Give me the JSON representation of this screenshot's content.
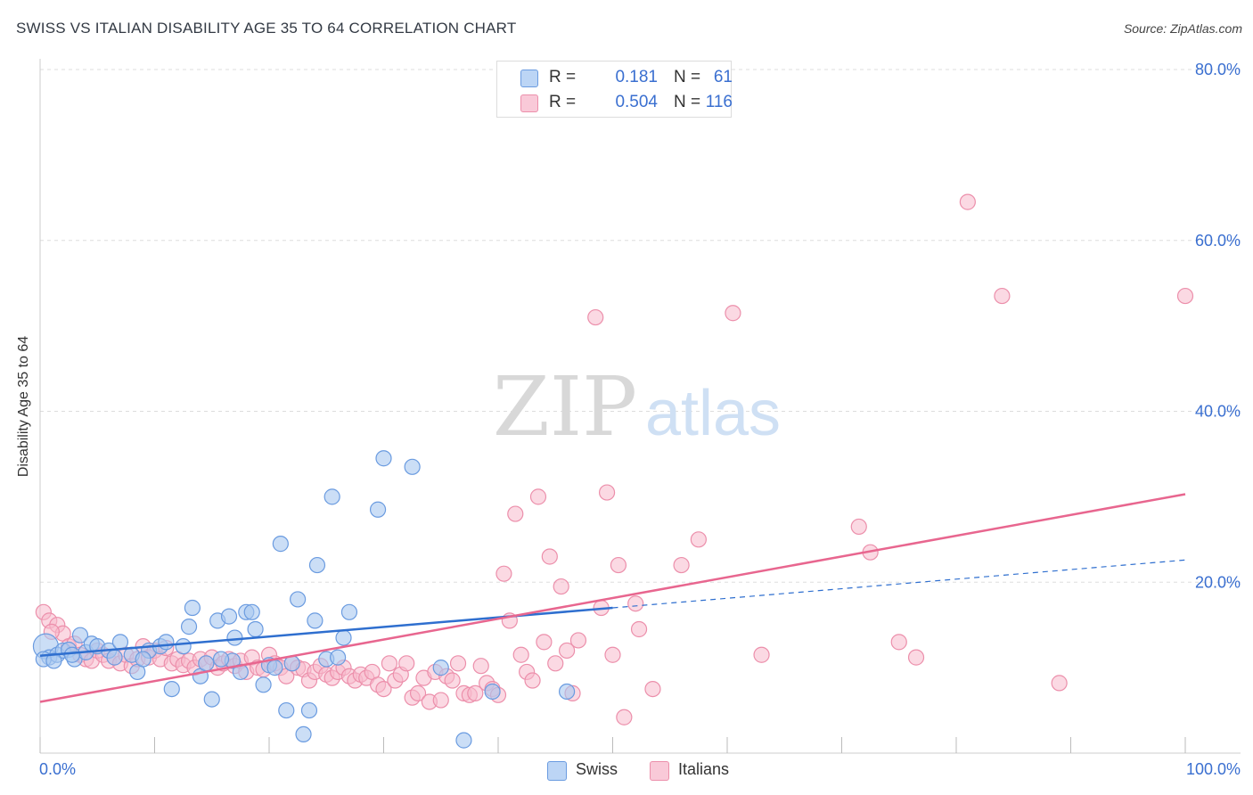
{
  "header": {
    "title": "SWISS VS ITALIAN DISABILITY AGE 35 TO 64 CORRELATION CHART",
    "source": "Source: ZipAtlas.com"
  },
  "watermark": {
    "zip": "ZIP",
    "atlas": "atlas"
  },
  "legend": {
    "rows": [
      {
        "series": "Swiss",
        "r_label": "R =",
        "r_value": "0.181",
        "n_label": "N =",
        "n_value": "61"
      },
      {
        "series": "Italians",
        "r_label": "R =",
        "r_value": "0.504",
        "n_label": "N =",
        "n_value": "116"
      }
    ]
  },
  "bottom_legend": {
    "swiss": "Swiss",
    "italians": "Italians"
  },
  "colors": {
    "swiss_fill": "#a8c8f0",
    "swiss_stroke": "#6a9be0",
    "swiss_line": "#2f6fcf",
    "italians_fill": "#f7b9cc",
    "italians_stroke": "#ec8fab",
    "italians_line": "#e8668f",
    "tick_label": "#3a6fd0",
    "grid": "#dddddd"
  },
  "chart_data": {
    "type": "scatter",
    "title": "SWISS VS ITALIAN DISABILITY AGE 35 TO 64 CORRELATION CHART",
    "xlabel": "",
    "ylabel": "Disability Age 35 to 64",
    "xlim": [
      0,
      100
    ],
    "ylim": [
      0,
      80
    ],
    "x_tick_labels": [
      "0.0%",
      "100.0%"
    ],
    "y_ticks": [
      20,
      40,
      60,
      80
    ],
    "y_tick_labels": [
      "20.0%",
      "40.0%",
      "60.0%",
      "80.0%"
    ],
    "grid": "horizontal dashed",
    "legend_position": "top-center",
    "series": [
      {
        "name": "Swiss",
        "r": 0.181,
        "n": 61,
        "trend": {
          "x0": 0,
          "y0": 11.4,
          "x1": 50,
          "y1": 17.0,
          "dashed_to_x": 100,
          "dashed_to_y": 22.6
        },
        "points": [
          [
            0.5,
            12.5
          ],
          [
            0.8,
            11.2
          ],
          [
            1.5,
            11.5
          ],
          [
            2.0,
            12.0
          ],
          [
            2.5,
            12.1
          ],
          [
            3.0,
            11.0
          ],
          [
            3.5,
            13.8
          ],
          [
            4.0,
            11.8
          ],
          [
            4.5,
            12.8
          ],
          [
            5.0,
            12.5
          ],
          [
            6.0,
            12.0
          ],
          [
            7.0,
            13.0
          ],
          [
            8.0,
            11.5
          ],
          [
            8.5,
            9.5
          ],
          [
            9.5,
            12.0
          ],
          [
            10.5,
            12.5
          ],
          [
            11.0,
            13.0
          ],
          [
            11.5,
            7.5
          ],
          [
            12.5,
            12.5
          ],
          [
            13.0,
            14.8
          ],
          [
            13.3,
            17.0
          ],
          [
            14.0,
            9.0
          ],
          [
            14.5,
            10.5
          ],
          [
            15.0,
            6.3
          ],
          [
            15.5,
            15.5
          ],
          [
            16.5,
            16.0
          ],
          [
            16.8,
            10.8
          ],
          [
            17.0,
            13.5
          ],
          [
            17.5,
            9.5
          ],
          [
            18.0,
            16.5
          ],
          [
            18.5,
            16.5
          ],
          [
            18.8,
            14.5
          ],
          [
            19.5,
            8.0
          ],
          [
            20.0,
            10.3
          ],
          [
            20.5,
            10.0
          ],
          [
            21.0,
            24.5
          ],
          [
            21.5,
            5.0
          ],
          [
            22.0,
            10.5
          ],
          [
            22.5,
            18.0
          ],
          [
            23.0,
            2.2
          ],
          [
            23.5,
            5.0
          ],
          [
            24.0,
            15.5
          ],
          [
            24.2,
            22.0
          ],
          [
            25.0,
            11.0
          ],
          [
            25.5,
            30.0
          ],
          [
            26.0,
            11.2
          ],
          [
            26.5,
            13.5
          ],
          [
            27.0,
            16.5
          ],
          [
            29.5,
            28.5
          ],
          [
            30.0,
            34.5
          ],
          [
            32.5,
            33.5
          ],
          [
            35.0,
            10.0
          ],
          [
            37.0,
            1.5
          ],
          [
            39.5,
            7.2
          ],
          [
            46.0,
            7.2
          ],
          [
            0.3,
            11.0
          ],
          [
            1.2,
            10.8
          ],
          [
            2.8,
            11.5
          ],
          [
            6.5,
            11.2
          ],
          [
            9.0,
            11.0
          ],
          [
            15.8,
            11.0
          ]
        ]
      },
      {
        "name": "Italians",
        "r": 0.504,
        "n": 116,
        "trend": {
          "x0": 0,
          "y0": 6.0,
          "x1": 100,
          "y1": 30.3
        },
        "points": [
          [
            0.3,
            16.5
          ],
          [
            0.8,
            15.5
          ],
          [
            1.5,
            15.0
          ],
          [
            2.0,
            14.0
          ],
          [
            2.5,
            12.5
          ],
          [
            3.0,
            12.8
          ],
          [
            3.5,
            11.5
          ],
          [
            4.0,
            11.0
          ],
          [
            4.5,
            10.8
          ],
          [
            5.0,
            12.0
          ],
          [
            5.5,
            11.5
          ],
          [
            6.0,
            10.8
          ],
          [
            6.5,
            11.2
          ],
          [
            7.0,
            10.5
          ],
          [
            7.5,
            11.5
          ],
          [
            8.0,
            10.2
          ],
          [
            8.5,
            11.0
          ],
          [
            9.0,
            12.5
          ],
          [
            9.5,
            11.2
          ],
          [
            10.0,
            12.0
          ],
          [
            10.5,
            11.0
          ],
          [
            11.0,
            12.3
          ],
          [
            11.5,
            10.5
          ],
          [
            12.0,
            11.0
          ],
          [
            12.5,
            10.3
          ],
          [
            13.0,
            10.8
          ],
          [
            13.5,
            10.0
          ],
          [
            14.0,
            11.0
          ],
          [
            14.5,
            10.5
          ],
          [
            15.0,
            11.2
          ],
          [
            15.5,
            10.0
          ],
          [
            16.0,
            10.5
          ],
          [
            16.5,
            11.0
          ],
          [
            17.0,
            10.2
          ],
          [
            17.5,
            10.8
          ],
          [
            18.0,
            9.5
          ],
          [
            18.5,
            11.2
          ],
          [
            19.0,
            10.0
          ],
          [
            19.5,
            9.8
          ],
          [
            20.0,
            11.5
          ],
          [
            20.5,
            10.5
          ],
          [
            21.0,
            10.0
          ],
          [
            21.5,
            9.0
          ],
          [
            22.0,
            10.5
          ],
          [
            22.5,
            10.0
          ],
          [
            23.0,
            9.8
          ],
          [
            23.5,
            8.5
          ],
          [
            24.0,
            9.5
          ],
          [
            24.5,
            10.2
          ],
          [
            25.0,
            9.2
          ],
          [
            25.5,
            8.8
          ],
          [
            26.0,
            9.5
          ],
          [
            26.5,
            10.0
          ],
          [
            27.0,
            9.0
          ],
          [
            27.5,
            8.5
          ],
          [
            28.0,
            9.2
          ],
          [
            28.5,
            8.8
          ],
          [
            29.0,
            9.5
          ],
          [
            29.5,
            8.0
          ],
          [
            30.0,
            7.5
          ],
          [
            30.5,
            10.5
          ],
          [
            31.0,
            8.5
          ],
          [
            31.5,
            9.2
          ],
          [
            32.0,
            10.5
          ],
          [
            32.5,
            6.5
          ],
          [
            33.0,
            7.0
          ],
          [
            33.5,
            8.8
          ],
          [
            34.0,
            6.0
          ],
          [
            34.5,
            9.5
          ],
          [
            35.0,
            6.2
          ],
          [
            35.5,
            9.0
          ],
          [
            36.0,
            8.5
          ],
          [
            36.5,
            10.5
          ],
          [
            37.0,
            7.0
          ],
          [
            37.5,
            6.8
          ],
          [
            38.0,
            7.0
          ],
          [
            38.5,
            10.2
          ],
          [
            39.0,
            8.2
          ],
          [
            39.5,
            7.5
          ],
          [
            40.0,
            6.8
          ],
          [
            40.5,
            21.0
          ],
          [
            41.0,
            15.5
          ],
          [
            41.5,
            28.0
          ],
          [
            42.0,
            11.5
          ],
          [
            42.5,
            9.5
          ],
          [
            43.0,
            8.5
          ],
          [
            43.5,
            30.0
          ],
          [
            44.0,
            13.0
          ],
          [
            44.5,
            23.0
          ],
          [
            45.0,
            10.5
          ],
          [
            45.5,
            19.5
          ],
          [
            46.0,
            12.0
          ],
          [
            46.5,
            7.0
          ],
          [
            47.0,
            13.2
          ],
          [
            48.5,
            51.0
          ],
          [
            49.0,
            17.0
          ],
          [
            49.5,
            30.5
          ],
          [
            50.0,
            11.5
          ],
          [
            50.5,
            22.0
          ],
          [
            51.0,
            4.2
          ],
          [
            52.0,
            17.5
          ],
          [
            52.3,
            14.5
          ],
          [
            53.5,
            7.5
          ],
          [
            56.0,
            22.0
          ],
          [
            57.5,
            25.0
          ],
          [
            60.5,
            51.5
          ],
          [
            63.0,
            11.5
          ],
          [
            71.5,
            26.5
          ],
          [
            72.5,
            23.5
          ],
          [
            75.0,
            13.0
          ],
          [
            76.5,
            11.2
          ],
          [
            81.0,
            64.5
          ],
          [
            84.0,
            53.5
          ],
          [
            89.0,
            8.2
          ],
          [
            100.0,
            53.5
          ],
          [
            1.0,
            14.2
          ]
        ]
      }
    ]
  }
}
